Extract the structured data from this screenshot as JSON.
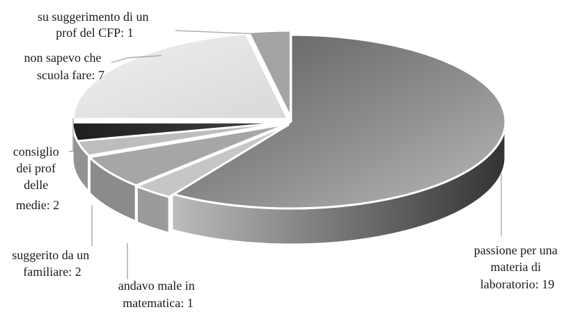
{
  "chart_data": {
    "type": "pie",
    "style": "3d-exploded",
    "slices": [
      {
        "label": "passione per una materia di laboratorio",
        "value": 19,
        "display": "passione per una materia di laboratorio: 19",
        "color": "#8f8f8f"
      },
      {
        "label": "andavo male in matematica",
        "value": 1,
        "display": "andavo male in matematica: 1",
        "color": "#c4c4c4"
      },
      {
        "label": "suggerito da un familiare",
        "value": 2,
        "display": "suggerito da un familiare: 2",
        "color": "#a9a9a9"
      },
      {
        "label": "consiglio dei prof delle medie",
        "value": 2,
        "display": "consiglio dei prof delle medie: 2",
        "color": "#b8b8b8"
      },
      {
        "label": "non sapevo che scuola fare",
        "value": 7,
        "display": "non sapevo che scuola fare: 7",
        "color": "#e6e6e6"
      },
      {
        "label": "su suggerimento di un prof del CFP",
        "value": 1,
        "display": "su suggerimento di un prof del CFP: 1",
        "color": "#a2a2a2"
      }
    ],
    "legend": "none",
    "data_labels": "outside with leader lines"
  },
  "labels": {
    "passione": [
      "passione per una",
      "materia di",
      "laboratorio: 19"
    ],
    "matematica": [
      "andavo male in",
      "matematica: 1"
    ],
    "familiare": [
      "suggerito da un",
      "familiare: 2"
    ],
    "consiglio": [
      "consiglio",
      "dei prof",
      "delle",
      "medie: 2"
    ],
    "scuola": [
      "non sapevo che",
      "scuola fare: 7"
    ],
    "cfp": [
      "su suggerimento di un",
      "prof del CFP: 1"
    ]
  }
}
